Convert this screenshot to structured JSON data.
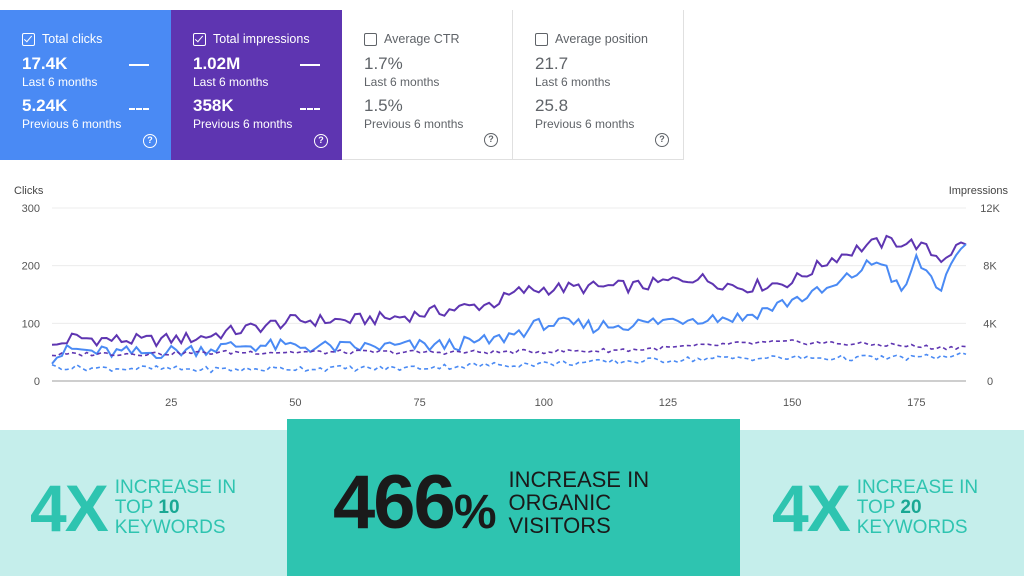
{
  "cards": [
    {
      "label": "Total clicks",
      "checked": true,
      "cur": "17.4K",
      "cur_label": "Last 6 months",
      "prev": "5.24K",
      "prev_label": "Previous 6 months"
    },
    {
      "label": "Total impressions",
      "checked": true,
      "cur": "1.02M",
      "cur_label": "Last 6 months",
      "prev": "358K",
      "prev_label": "Previous 6 months"
    },
    {
      "label": "Average CTR",
      "checked": false,
      "cur": "1.7%",
      "cur_label": "Last 6 months",
      "prev": "1.5%",
      "prev_label": "Previous 6 months"
    },
    {
      "label": "Average position",
      "checked": false,
      "cur": "21.7",
      "cur_label": "Last 6 months",
      "prev": "25.8",
      "prev_label": "Previous 6 months"
    }
  ],
  "help_glyph": "?",
  "chart_data": {
    "type": "line",
    "ylabel_left": "Clicks",
    "ylabel_right": "Impressions",
    "yticks_left": [
      "300",
      "200",
      "100",
      "0"
    ],
    "yticks_right": [
      "12K",
      "8K",
      "4K",
      "0"
    ],
    "xticks": [
      "25",
      "50",
      "75",
      "100",
      "125",
      "150",
      "175"
    ],
    "xlim": [
      1,
      185
    ],
    "ylim_left": [
      0,
      300
    ],
    "ylim_right": [
      0,
      12000
    ],
    "grid": true,
    "series": [
      {
        "axis": "right",
        "color": "#5e35b1",
        "dash": false,
        "points": [
          [
            1,
            2300
          ],
          [
            5,
            3000
          ],
          [
            10,
            2900
          ],
          [
            20,
            2800
          ],
          [
            30,
            3000
          ],
          [
            40,
            3600
          ],
          [
            50,
            4200
          ],
          [
            60,
            4200
          ],
          [
            70,
            4400
          ],
          [
            80,
            4900
          ],
          [
            90,
            5400
          ],
          [
            95,
            6200
          ],
          [
            100,
            6400
          ],
          [
            110,
            6500
          ],
          [
            120,
            6600
          ],
          [
            130,
            7200
          ],
          [
            140,
            6500
          ],
          [
            150,
            6900
          ],
          [
            158,
            8500
          ],
          [
            165,
            9400
          ],
          [
            170,
            9700
          ],
          [
            175,
            9500
          ],
          [
            180,
            8500
          ],
          [
            185,
            9700
          ]
        ]
      },
      {
        "axis": "left",
        "color": "#4a8af4",
        "dash": false,
        "points": [
          [
            1,
            40
          ],
          [
            5,
            55
          ],
          [
            10,
            50
          ],
          [
            20,
            48
          ],
          [
            30,
            55
          ],
          [
            40,
            62
          ],
          [
            50,
            60
          ],
          [
            60,
            58
          ],
          [
            70,
            60
          ],
          [
            80,
            62
          ],
          [
            90,
            70
          ],
          [
            95,
            85
          ],
          [
            100,
            100
          ],
          [
            110,
            95
          ],
          [
            120,
            100
          ],
          [
            130,
            110
          ],
          [
            140,
            110
          ],
          [
            150,
            140
          ],
          [
            158,
            160
          ],
          [
            165,
            200
          ],
          [
            168,
            210
          ],
          [
            172,
            150
          ],
          [
            175,
            210
          ],
          [
            180,
            160
          ],
          [
            185,
            240
          ]
        ]
      },
      {
        "axis": "right",
        "color": "#5e35b1",
        "dash": true,
        "points": [
          [
            1,
            1800
          ],
          [
            10,
            1900
          ],
          [
            20,
            1900
          ],
          [
            30,
            1950
          ],
          [
            40,
            2000
          ],
          [
            50,
            2000
          ],
          [
            60,
            2000
          ],
          [
            70,
            2000
          ],
          [
            80,
            2000
          ],
          [
            90,
            2000
          ],
          [
            100,
            2050
          ],
          [
            110,
            2100
          ],
          [
            120,
            2200
          ],
          [
            130,
            2400
          ],
          [
            140,
            2600
          ],
          [
            150,
            2700
          ],
          [
            160,
            2600
          ],
          [
            170,
            2500
          ],
          [
            180,
            2300
          ],
          [
            185,
            2400
          ]
        ]
      },
      {
        "axis": "left",
        "color": "#4a8af4",
        "dash": true,
        "points": [
          [
            1,
            25
          ],
          [
            10,
            22
          ],
          [
            20,
            22
          ],
          [
            30,
            20
          ],
          [
            40,
            20
          ],
          [
            50,
            22
          ],
          [
            60,
            22
          ],
          [
            70,
            22
          ],
          [
            80,
            25
          ],
          [
            90,
            28
          ],
          [
            100,
            30
          ],
          [
            110,
            32
          ],
          [
            120,
            35
          ],
          [
            130,
            38
          ],
          [
            140,
            40
          ],
          [
            150,
            40
          ],
          [
            160,
            40
          ],
          [
            170,
            40
          ],
          [
            180,
            42
          ],
          [
            185,
            45
          ]
        ]
      }
    ]
  },
  "stats": {
    "left_big": "4X",
    "left_desc1": "INCREASE IN",
    "left_desc2_prefix": "TOP ",
    "left_desc2_num": "10",
    "left_desc3": "KEYWORDS",
    "center_big": "466",
    "center_pct": "%",
    "center_desc1": "INCREASE IN",
    "center_desc2": "ORGANIC",
    "center_desc3": "VISITORS",
    "right_big": "4X",
    "right_desc1": "INCREASE IN",
    "right_desc2_prefix": "TOP ",
    "right_desc2_num": "20",
    "right_desc3": "KEYWORDS"
  }
}
